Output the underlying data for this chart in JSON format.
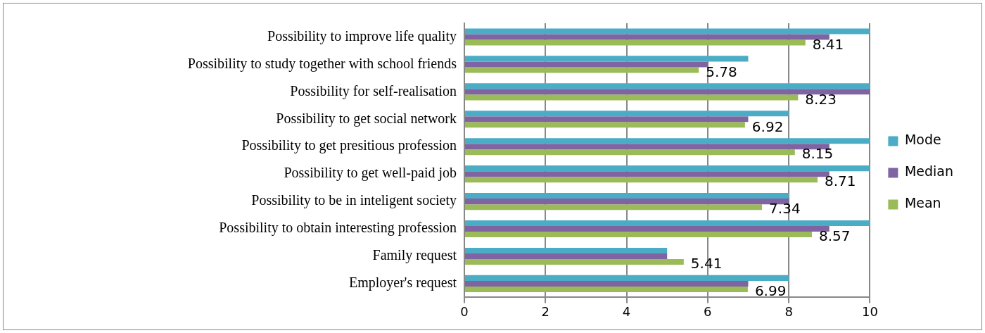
{
  "chart_data": {
    "type": "bar",
    "orientation": "horizontal",
    "categories": [
      "Possibility to improve life quality",
      "Possibility to study together with school friends",
      "Possibility for self-realisation",
      "Possibility to get social network",
      "Possibility to get presitious profession",
      "Possibility to get well-paid job",
      "Possibility to be in inteligent society",
      "Possibility to obtain interesting profession",
      "Family request",
      "Employer's request"
    ],
    "series": [
      {
        "name": "Mode",
        "color": "#4bacc6",
        "values": [
          10,
          7,
          10,
          8,
          10,
          10,
          8,
          10,
          5,
          8
        ]
      },
      {
        "name": "Median",
        "color": "#8064a2",
        "values": [
          9,
          6,
          10,
          7,
          9,
          9,
          8,
          9,
          5,
          7
        ]
      },
      {
        "name": "Mean",
        "color": "#9bbb59",
        "values": [
          8.41,
          5.78,
          8.23,
          6.92,
          8.15,
          8.71,
          7.34,
          8.57,
          5.41,
          6.99
        ],
        "value_labels": [
          "8.41",
          "5.78",
          "8.23",
          "6.92",
          "8.15",
          "8.71",
          "7.34",
          "8.57",
          "5.41",
          "6.99"
        ]
      }
    ],
    "xlim": [
      0,
      10
    ],
    "xticks": [
      0,
      2,
      4,
      6,
      8,
      10
    ],
    "grid": "x",
    "legend": "right"
  }
}
